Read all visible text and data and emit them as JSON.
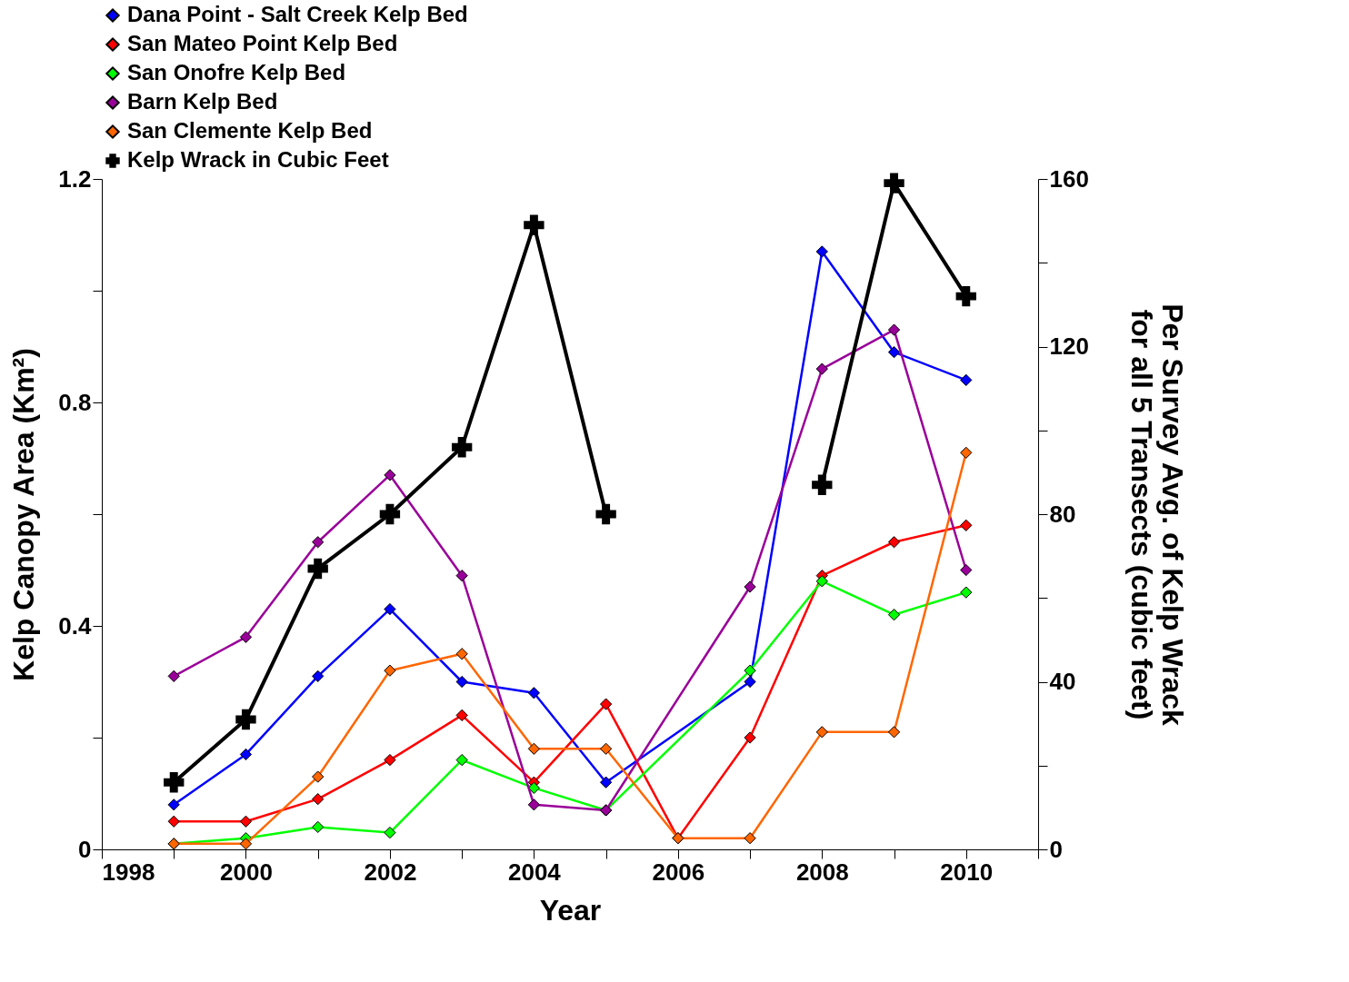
{
  "chart_data": {
    "type": "line",
    "xlabel": "Year",
    "ylabel": "Kelp Canopy Area (Km²)",
    "y2label": "Per Survey Avg. of Kelp Wrack\nfor all 5 Transects (cubic feet)",
    "xlim": [
      1998,
      2011
    ],
    "xticks": [
      1998,
      {
        "value": 1999,
        "label": null
      },
      2000,
      {
        "value": 2001,
        "label": null
      },
      2002,
      {
        "value": 2003,
        "label": null
      },
      2004,
      {
        "value": 2005,
        "label": null
      },
      2006,
      {
        "value": 2007,
        "label": null
      },
      2008,
      {
        "value": 2009,
        "label": null
      },
      2010,
      {
        "value": 2011,
        "label": null
      }
    ],
    "ylim": [
      0,
      1.2
    ],
    "yticks": [
      0,
      {
        "value": 0.2,
        "label": null
      },
      0.4,
      {
        "value": 0.6,
        "label": null
      },
      0.8,
      {
        "value": 1.0,
        "label": null
      },
      1.2
    ],
    "y2lim": [
      0,
      160
    ],
    "y2ticks": [
      0,
      {
        "value": 20,
        "label": null
      },
      40,
      {
        "value": 60,
        "label": null
      },
      80,
      {
        "value": 100,
        "label": null
      },
      120,
      {
        "value": 140,
        "label": null
      },
      160
    ],
    "grid": false,
    "legend": "top",
    "series": [
      {
        "name": "Dana Point - Salt Creek Kelp Bed",
        "color": "#0000ff",
        "marker": "diamond",
        "x": [
          1999,
          2000,
          2001,
          2002,
          2003,
          2004,
          2005,
          2007,
          2008,
          2009,
          2010
        ],
        "values": [
          0.08,
          0.17,
          0.31,
          0.43,
          0.3,
          0.28,
          0.12,
          0.3,
          1.07,
          0.89,
          0.84
        ]
      },
      {
        "name": "San Mateo Point Kelp Bed",
        "color": "#ff0000",
        "marker": "diamond",
        "x": [
          1999,
          2000,
          2001,
          2002,
          2003,
          2004,
          2005,
          2006,
          2007,
          2008,
          2009,
          2010
        ],
        "values": [
          0.05,
          0.05,
          0.09,
          0.16,
          0.24,
          0.12,
          0.26,
          0.02,
          0.2,
          0.49,
          0.55,
          0.58
        ]
      },
      {
        "name": "San Onofre Kelp Bed",
        "color": "#00ff00",
        "marker": "diamond",
        "x": [
          1999,
          2000,
          2001,
          2002,
          2003,
          2004,
          2005,
          2007,
          2008,
          2009,
          2010
        ],
        "values": [
          0.01,
          0.02,
          0.04,
          0.03,
          0.16,
          0.11,
          0.07,
          0.32,
          0.48,
          0.42,
          0.46
        ]
      },
      {
        "name": "Barn Kelp Bed",
        "color": "#990099",
        "marker": "diamond",
        "x": [
          1999,
          2000,
          2001,
          2002,
          2003,
          2004,
          2005,
          2007,
          2008,
          2009,
          2010
        ],
        "values": [
          0.31,
          0.38,
          0.55,
          0.67,
          0.49,
          0.08,
          0.07,
          0.47,
          0.86,
          0.93,
          0.5
        ]
      },
      {
        "name": "San Clemente Kelp Bed",
        "color": "#ff6600",
        "marker": "diamond",
        "x": [
          1999,
          2000,
          2001,
          2002,
          2003,
          2004,
          2005,
          2006,
          2007,
          2008,
          2009,
          2010
        ],
        "values": [
          0.01,
          0.01,
          0.13,
          0.32,
          0.35,
          0.18,
          0.18,
          0.02,
          0.02,
          0.21,
          0.21,
          0.71
        ]
      },
      {
        "name": "Kelp Wrack in Cubic Feet",
        "color": "#000000",
        "marker": "cross",
        "axis": "y2",
        "x": [
          1999,
          2000,
          2001,
          2002,
          2003,
          2004,
          2005,
          2006,
          2007,
          2008,
          2009,
          2010
        ],
        "values": [
          16,
          31,
          67,
          80,
          96,
          149,
          80,
          null,
          null,
          87,
          159,
          132
        ]
      }
    ]
  }
}
